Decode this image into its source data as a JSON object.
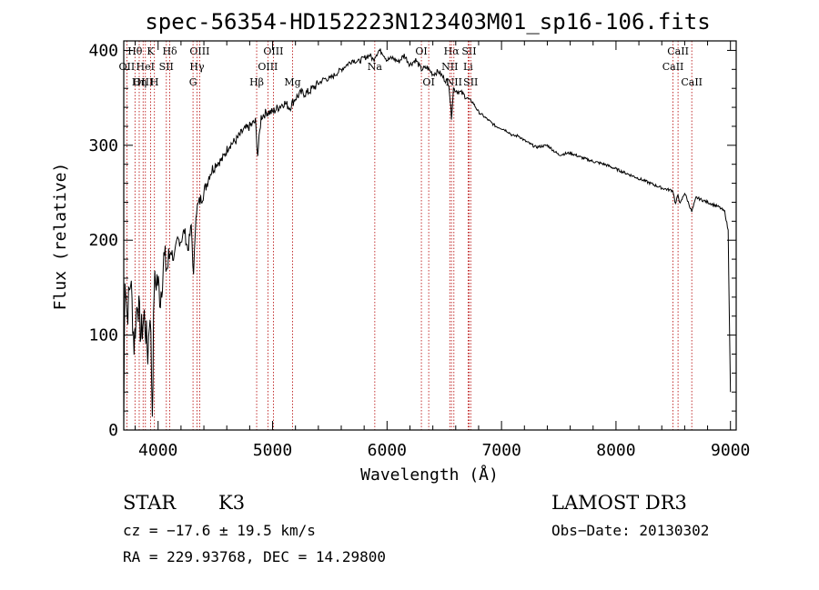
{
  "chart_data": {
    "type": "line",
    "title": "spec-56354-HD152223N123403M01_sp16-106.fits",
    "xlabel": "Wavelength (Å)",
    "ylabel": "Flux (relative)",
    "xlim": [
      3700,
      9050
    ],
    "ylim": [
      0,
      410
    ],
    "xticks": [
      4000,
      5000,
      6000,
      7000,
      8000,
      9000
    ],
    "yticks": [
      0,
      100,
      200,
      300,
      400
    ],
    "series": [
      {
        "name": "spectrum",
        "x": [
          3700,
          3710,
          3730,
          3760,
          3790,
          3820,
          3850,
          3880,
          3910,
          3930,
          3950,
          3965,
          3990,
          4020,
          4050,
          4080,
          4110,
          4140,
          4170,
          4200,
          4230,
          4260,
          4290,
          4310,
          4330,
          4360,
          4400,
          4450,
          4500,
          4560,
          4620,
          4680,
          4740,
          4800,
          4850,
          4870,
          4900,
          4950,
          5000,
          5050,
          5100,
          5150,
          5200,
          5250,
          5300,
          5350,
          5400,
          5450,
          5500,
          5550,
          5600,
          5650,
          5700,
          5750,
          5800,
          5850,
          5880,
          5900,
          5930,
          5960,
          6000,
          6050,
          6100,
          6150,
          6200,
          6250,
          6300,
          6350,
          6400,
          6450,
          6500,
          6540,
          6563,
          6580,
          6600,
          6650,
          6700,
          6750,
          6800,
          6850,
          6900,
          6950,
          7000,
          7050,
          7100,
          7150,
          7200,
          7300,
          7400,
          7500,
          7600,
          7700,
          7800,
          7900,
          8000,
          8100,
          8200,
          8300,
          8400,
          8498,
          8520,
          8542,
          8560,
          8600,
          8662,
          8700,
          8800,
          8900,
          8950,
          8980,
          8990,
          9000
        ],
        "y": [
          5,
          170,
          120,
          160,
          90,
          140,
          100,
          120,
          80,
          130,
          20,
          150,
          160,
          140,
          180,
          170,
          190,
          180,
          200,
          200,
          210,
          190,
          215,
          160,
          230,
          240,
          250,
          270,
          280,
          285,
          300,
          305,
          315,
          320,
          325,
          290,
          330,
          335,
          335,
          340,
          345,
          340,
          350,
          355,
          355,
          360,
          365,
          370,
          370,
          375,
          380,
          385,
          390,
          388,
          392,
          395,
          390,
          395,
          400,
          398,
          390,
          392,
          388,
          395,
          385,
          390,
          380,
          382,
          375,
          378,
          370,
          365,
          330,
          360,
          358,
          355,
          350,
          345,
          335,
          330,
          325,
          320,
          318,
          315,
          310,
          310,
          305,
          298,
          300,
          290,
          292,
          287,
          283,
          280,
          275,
          270,
          265,
          260,
          255,
          252,
          238,
          248,
          238,
          250,
          230,
          245,
          240,
          235,
          230,
          210,
          120,
          40
        ]
      }
    ],
    "lines": [
      {
        "label": "Hθ",
        "x": 3798,
        "row": 1
      },
      {
        "label": "OII",
        "x": 3727,
        "row": 2
      },
      {
        "label": "OIII",
        "x": 3869,
        "row": 3
      },
      {
        "label": "HeI",
        "x": 3889,
        "row": 2
      },
      {
        "label": "Hη",
        "x": 3835,
        "row": 3
      },
      {
        "label": "K",
        "x": 3934,
        "row": 1
      },
      {
        "label": "SII",
        "x": 4072,
        "row": 2
      },
      {
        "label": "H",
        "x": 3968,
        "row": 3
      },
      {
        "label": "Hδ",
        "x": 4102,
        "row": 1
      },
      {
        "label": "OIII",
        "x": 4363,
        "row": 1
      },
      {
        "label": "Hγ",
        "x": 4340,
        "row": 2
      },
      {
        "label": "G",
        "x": 4305,
        "row": 3
      },
      {
        "label": "Hβ",
        "x": 4861,
        "row": 3
      },
      {
        "label": "OIII",
        "x": 5007,
        "row": 1
      },
      {
        "label": "OIII",
        "x": 4959,
        "row": 2
      },
      {
        "label": "Mg",
        "x": 5175,
        "row": 3
      },
      {
        "label": "Na",
        "x": 5893,
        "row": 2
      },
      {
        "label": "OI",
        "x": 6300,
        "row": 1
      },
      {
        "label": "OI",
        "x": 6364,
        "row": 3
      },
      {
        "label": "Hα",
        "x": 6563,
        "row": 1
      },
      {
        "label": "NII",
        "x": 6548,
        "row": 2
      },
      {
        "label": "NII",
        "x": 6584,
        "row": 3
      },
      {
        "label": "SII",
        "x": 6717,
        "row": 1
      },
      {
        "label": "Li",
        "x": 6708,
        "row": 2
      },
      {
        "label": "SII",
        "x": 6731,
        "row": 3
      },
      {
        "label": "CaII",
        "x": 8542,
        "row": 1
      },
      {
        "label": "CaII",
        "x": 8498,
        "row": 2
      },
      {
        "label": "CaII",
        "x": 8662,
        "row": 3
      }
    ]
  },
  "info": {
    "class_label": "STAR",
    "subclass": "K3",
    "survey": "LAMOST DR3",
    "cz": "cz = −17.6 ± 19.5 km/s",
    "obs_date": "Obs−Date: 20130302",
    "radec": "RA = 229.93768, DEC =  14.29800"
  }
}
